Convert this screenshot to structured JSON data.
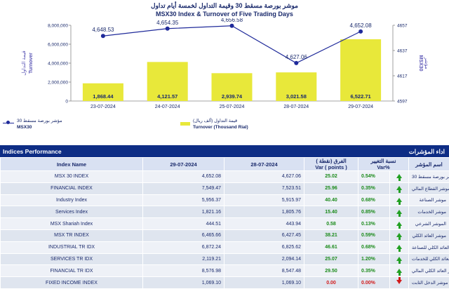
{
  "header": {
    "title_ar": "موشر بورصة مسقط 30 وقيمة التداول لخمسة أيام تداول",
    "title_en": "MSX30 Index & Turnover of Five Trading Days"
  },
  "legend": {
    "index_ar": "مؤشر بورصة مسقط 30",
    "index_en": "MSX30",
    "turnover_ar": "قيمة التداول (ألف ريال)",
    "turnover_en": "Turnover (Thousand Rial)"
  },
  "chart_data": {
    "type": "bar",
    "categories": [
      "23-07-2024",
      "24-07-2024",
      "25-07-2024",
      "28-07-2024",
      "29-07-2024"
    ],
    "series": [
      {
        "name": "Turnover (Thousand Rial)",
        "type": "bar",
        "axis": "left",
        "values": [
          1868.44,
          4121.57,
          2939.74,
          3021.58,
          6522.71
        ],
        "labels": [
          "1,868.44",
          "4,121.57",
          "2,939.74",
          "3,021.58",
          "6,522.71"
        ],
        "color": "#e8e83a"
      },
      {
        "name": "MSX30",
        "type": "line",
        "axis": "right",
        "values": [
          4648.53,
          4654.35,
          4656.58,
          4627.06,
          4652.08
        ],
        "labels": [
          "4,648.53",
          "4,654.35",
          "4,656.58",
          "4,627.06",
          "4,652.08"
        ],
        "color": "#1f2a9a"
      }
    ],
    "left_axis": {
      "ylim": [
        0,
        8000000
      ],
      "ticks": [
        "0",
        "2,000,000",
        "4,000,000",
        "6,000,000",
        "8,000,000"
      ],
      "label_ar": "قيمة التداول",
      "label_en": "Turnover"
    },
    "right_axis": {
      "ylim": [
        4597,
        4657
      ],
      "ticks": [
        "4597",
        "4617",
        "4637",
        "4657"
      ],
      "label_ar": "مؤشر",
      "label_en": "MSX30"
    },
    "grid": false
  },
  "section": {
    "title_en": "Indices Performance",
    "title_ar": "اداء المؤشرات"
  },
  "table": {
    "headers": {
      "name": "Index Name",
      "d1": "29-07-2024",
      "d2": "28-07-2024",
      "var_ar": "الفرق (نقطة )",
      "var_en": "Var ( points )",
      "pct_ar": "نسبة التغيير",
      "pct_en": "Var%",
      "name_ar": "اسم المؤشر"
    },
    "rows": [
      {
        "name": "MSX 30 INDEX",
        "d1": "4,652.08",
        "d2": "4,627.06",
        "var": "25.02",
        "pct": "0.54%",
        "dir": "up",
        "name_ar": "موشر بورصة مسقط 30"
      },
      {
        "name": "FINANCIAL INDEX",
        "d1": "7,549.47",
        "d2": "7,523.51",
        "var": "25.96",
        "pct": "0.35%",
        "dir": "up",
        "name_ar": "موشر القطاع المالي"
      },
      {
        "name": "Industry Index",
        "d1": "5,956.37",
        "d2": "5,915.97",
        "var": "40.40",
        "pct": "0.68%",
        "dir": "up",
        "name_ar": "موشر الصناعة"
      },
      {
        "name": "Services Index",
        "d1": "1,821.16",
        "d2": "1,805.76",
        "var": "15.40",
        "pct": "0.85%",
        "dir": "up",
        "name_ar": "موشر الخدمات"
      },
      {
        "name": "MSX Shariah Index",
        "d1": "444.51",
        "d2": "443.94",
        "var": "0.58",
        "pct": "0.13%",
        "dir": "up",
        "name_ar": "الموشر الشرعي"
      },
      {
        "name": "MSX TR INDEX",
        "d1": "6,465.66",
        "d2": "6,427.45",
        "var": "38.21",
        "pct": "0.59%",
        "dir": "up",
        "name_ar": "موشر العائد الكلي"
      },
      {
        "name": "INDUSTRIAL TR IDX",
        "d1": "6,872.24",
        "d2": "6,825.62",
        "var": "46.61",
        "pct": "0.68%",
        "dir": "up",
        "name_ar": "موشر العائد الكلي للصناعة"
      },
      {
        "name": "SERVICES TR IDX",
        "d1": "2,119.21",
        "d2": "2,094.14",
        "var": "25.07",
        "pct": "1.20%",
        "dir": "up",
        "name_ar": "موشر العائد الكلي للخدمات"
      },
      {
        "name": "FINANCIAL TR IDX",
        "d1": "8,576.98",
        "d2": "8,547.48",
        "var": "29.50",
        "pct": "0.35%",
        "dir": "up",
        "name_ar": "موشر العائد الكلي المالي"
      },
      {
        "name": "FIXED INCOME INDEX",
        "d1": "1,069.10",
        "d2": "1,069.10",
        "var": "0.00",
        "pct": "0.00%",
        "dir": "down",
        "name_ar": "موشر الدخل الثابت"
      }
    ]
  }
}
